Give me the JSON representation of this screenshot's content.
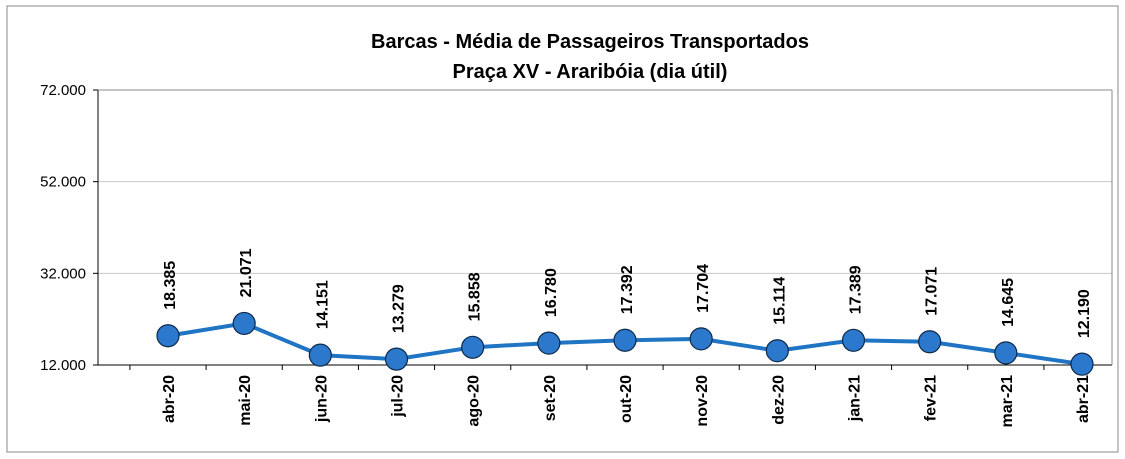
{
  "chart_data": {
    "type": "line",
    "title": "Barcas - Média de Passageiros Transportados",
    "subtitle": "Praça XV - Araribóia (dia útil)",
    "categories": [
      "abr-20",
      "mai-20",
      "jun-20",
      "jul-20",
      "ago-20",
      "set-20",
      "out-20",
      "nov-20",
      "dez-20",
      "jan-21",
      "fev-21",
      "mar-21",
      "abr-21"
    ],
    "series": [
      {
        "name": "Passageiros",
        "color": "#1f74c4",
        "values": [
          18385,
          21071,
          14151,
          13279,
          15858,
          16780,
          17392,
          17704,
          15114,
          17389,
          17071,
          14645,
          12190
        ],
        "value_labels": [
          "18.385",
          "21.071",
          "14.151",
          "13.279",
          "15.858",
          "16.780",
          "17.392",
          "17.704",
          "15.114",
          "17.389",
          "17.071",
          "14.645",
          "12.190"
        ]
      }
    ],
    "ylim": [
      12000,
      72000
    ],
    "yticks": [
      {
        "value": 12000,
        "label": "12.000"
      },
      {
        "value": 32000,
        "label": "32.000"
      },
      {
        "value": 52000,
        "label": "52.000"
      },
      {
        "value": 72000,
        "label": "72.000"
      }
    ],
    "grid": true
  }
}
